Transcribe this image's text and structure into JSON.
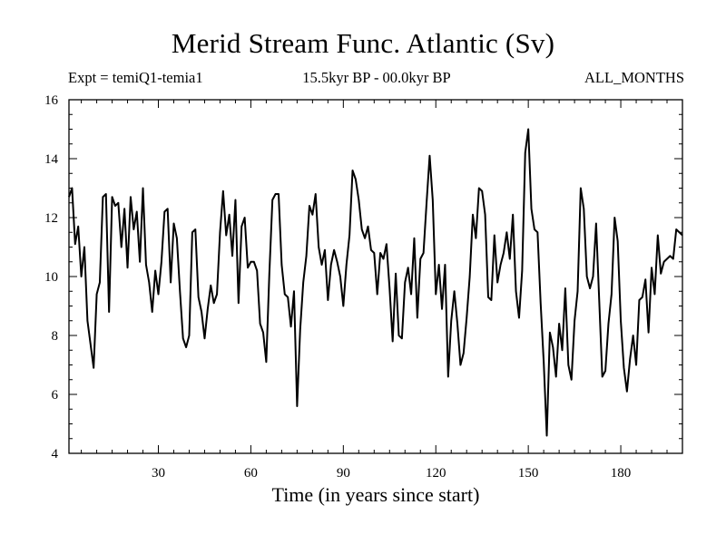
{
  "chart_data": {
    "type": "line",
    "title": "Merid Stream Func. Atlantic (Sv)",
    "subtitle_left": "Expt = temiQ1-temia1",
    "subtitle_center": "15.5kyr BP - 00.0kyr BP",
    "subtitle_right": "ALL_MONTHS",
    "xlabel": "Time (in years since start)",
    "ylabel": "",
    "xlim": [
      1,
      200
    ],
    "ylim": [
      4,
      16
    ],
    "xticks": [
      30,
      60,
      90,
      120,
      150,
      180
    ],
    "yticks": [
      4,
      6,
      8,
      10,
      12,
      14,
      16
    ],
    "grid": false,
    "series": [
      {
        "name": "Merid Stream Func. Atlantic",
        "x": [
          1,
          2,
          3,
          4,
          5,
          6,
          7,
          8,
          9,
          10,
          11,
          12,
          13,
          14,
          15,
          16,
          17,
          18,
          19,
          20,
          21,
          22,
          23,
          24,
          25,
          26,
          27,
          28,
          29,
          30,
          31,
          32,
          33,
          34,
          35,
          36,
          37,
          38,
          39,
          40,
          41,
          42,
          43,
          44,
          45,
          46,
          47,
          48,
          49,
          50,
          51,
          52,
          53,
          54,
          55,
          56,
          57,
          58,
          59,
          60,
          61,
          62,
          63,
          64,
          65,
          66,
          67,
          68,
          69,
          70,
          71,
          72,
          73,
          74,
          75,
          76,
          77,
          78,
          79,
          80,
          81,
          82,
          83,
          84,
          85,
          86,
          87,
          88,
          89,
          90,
          91,
          92,
          93,
          94,
          95,
          96,
          97,
          98,
          99,
          100,
          101,
          102,
          103,
          104,
          105,
          106,
          107,
          108,
          109,
          110,
          111,
          112,
          113,
          114,
          115,
          116,
          117,
          118,
          119,
          120,
          121,
          122,
          123,
          124,
          125,
          126,
          127,
          128,
          129,
          130,
          131,
          132,
          133,
          134,
          135,
          136,
          137,
          138,
          139,
          140,
          141,
          142,
          143,
          144,
          145,
          146,
          147,
          148,
          149,
          150,
          151,
          152,
          153,
          154,
          155,
          156,
          157,
          158,
          159,
          160,
          161,
          162,
          163,
          164,
          165,
          166,
          167,
          168,
          169,
          170,
          171,
          172,
          173,
          174,
          175,
          176,
          177,
          178,
          179,
          180,
          181,
          182,
          183,
          184,
          185,
          186,
          187,
          188,
          189,
          190,
          191,
          192,
          193,
          194,
          195,
          196,
          197,
          198,
          199,
          200
        ],
        "values": [
          12.7,
          13.0,
          11.1,
          11.7,
          10.0,
          11.0,
          8.5,
          7.7,
          6.9,
          9.4,
          9.8,
          12.7,
          12.8,
          8.8,
          12.7,
          12.4,
          12.5,
          11.0,
          12.3,
          10.3,
          12.7,
          11.6,
          12.2,
          10.5,
          13.0,
          10.4,
          9.8,
          8.8,
          10.2,
          9.4,
          10.5,
          12.2,
          12.3,
          9.8,
          11.8,
          11.3,
          9.5,
          7.9,
          7.6,
          8.0,
          11.5,
          11.6,
          9.3,
          8.8,
          7.9,
          8.9,
          9.7,
          9.1,
          9.4,
          11.5,
          12.9,
          11.4,
          12.1,
          10.7,
          12.6,
          9.1,
          11.7,
          12.0,
          10.3,
          10.5,
          10.5,
          10.2,
          8.4,
          8.1,
          7.1,
          10.1,
          12.6,
          12.8,
          12.8,
          10.4,
          9.4,
          9.3,
          8.3,
          9.5,
          5.6,
          8.2,
          9.8,
          10.7,
          12.4,
          12.1,
          12.8,
          11.0,
          10.4,
          10.9,
          9.2,
          10.4,
          10.9,
          10.5,
          10.0,
          9.0,
          10.4,
          11.4,
          13.6,
          13.3,
          12.6,
          11.6,
          11.3,
          11.7,
          10.9,
          10.8,
          9.4,
          10.8,
          10.6,
          11.1,
          9.6,
          7.8,
          10.1,
          8.0,
          7.9,
          9.8,
          10.3,
          9.4,
          11.3,
          8.6,
          10.6,
          10.8,
          12.5,
          14.1,
          12.6,
          9.4,
          10.4,
          8.9,
          10.4,
          6.6,
          8.5,
          9.5,
          8.4,
          7.0,
          7.4,
          8.6,
          10.0,
          12.1,
          11.3,
          13.0,
          12.9,
          12.1,
          9.3,
          9.2,
          11.4,
          9.8,
          10.4,
          10.8,
          11.5,
          10.6,
          12.1,
          9.5,
          8.6,
          10.2,
          14.2,
          15.0,
          12.3,
          11.6,
          11.5,
          9.1,
          7.1,
          4.6,
          8.1,
          7.6,
          6.6,
          8.4,
          7.5,
          9.6,
          7.0,
          6.5,
          8.5,
          9.5,
          13.0,
          12.3,
          10.0,
          9.6,
          10.0,
          11.8,
          9.2,
          6.6,
          6.8,
          8.4,
          9.4,
          12.0,
          11.2,
          8.5,
          6.9,
          6.1,
          7.2,
          8.0,
          7.0,
          9.2,
          9.3,
          9.9,
          8.1,
          10.3,
          9.4,
          11.4,
          10.1,
          10.5,
          10.6,
          10.7,
          10.6,
          11.6,
          11.5,
          11.4
        ]
      }
    ]
  }
}
